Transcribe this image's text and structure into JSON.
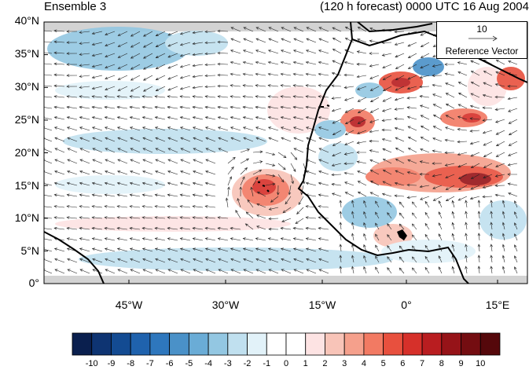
{
  "title_left": "Ensemble 3",
  "title_right": "(120 h forecast) 0000 UTC 16 Aug 2004",
  "lat_labels": [
    "40°N",
    "35°N",
    "30°N",
    "25°N",
    "20°N",
    "15°N",
    "10°N",
    "5°N",
    "0°"
  ],
  "lon_labels": [
    "45°W",
    "30°W",
    "15°W",
    "0°",
    "15°E"
  ],
  "reference_vector": {
    "magnitude": "10",
    "label": "Reference Vector"
  },
  "colorbar": {
    "labels": [
      "-10",
      "-9",
      "-8",
      "-7",
      "-6",
      "-5",
      "-4",
      "-3",
      "-2",
      "-1",
      "0",
      "1",
      "2",
      "3",
      "4",
      "5",
      "6",
      "7",
      "8",
      "9",
      "10"
    ],
    "colors": [
      "#0a1f4e",
      "#0e3472",
      "#134b92",
      "#1f62ad",
      "#2e77bd",
      "#4a91c8",
      "#6aacd6",
      "#93c7e2",
      "#c0e0ef",
      "#e2f2f9",
      "#ffffff",
      "#ffffff",
      "#fde3e3",
      "#f8c4b8",
      "#f5a08c",
      "#f27a63",
      "#e8503e",
      "#d6302a",
      "#b91d20",
      "#961318",
      "#740d11",
      "#55080b"
    ]
  }
}
